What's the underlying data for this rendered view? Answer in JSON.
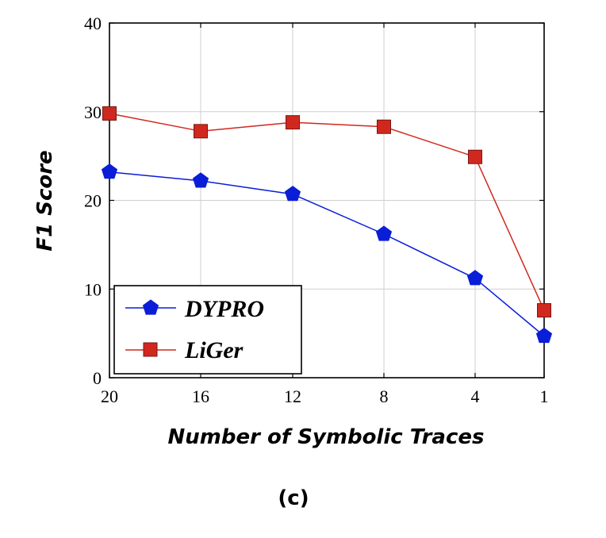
{
  "chart_data": {
    "type": "line",
    "categories": [
      "20",
      "16",
      "12",
      "8",
      "4",
      "1"
    ],
    "series": [
      {
        "name": "DYPRO",
        "values": [
          23.2,
          22.2,
          20.7,
          16.2,
          11.2,
          4.7
        ],
        "color": "#0a1ed8",
        "marker": "pentagon"
      },
      {
        "name": "LiGer",
        "values": [
          29.8,
          27.8,
          28.8,
          28.3,
          24.9,
          7.6
        ],
        "color": "#d0281e",
        "marker": "square"
      }
    ],
    "ylim": [
      0,
      40
    ],
    "yticks": [
      0,
      10,
      20,
      30,
      40
    ],
    "xlabel": "Number of Symbolic Traces",
    "ylabel": "F1 Score",
    "grid": true,
    "legend_position": "bottom-left"
  },
  "legend": {
    "dypro_label": "DYPRO",
    "liger_label": "LiGer"
  },
  "caption": "(c)"
}
